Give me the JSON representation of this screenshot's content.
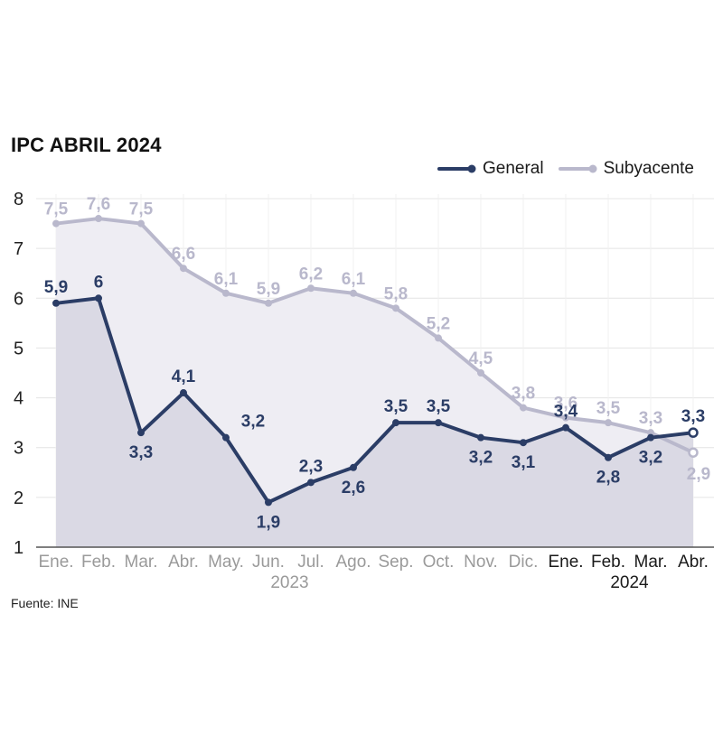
{
  "title": "IPC ABRIL 2024",
  "source": "Fuente: INE",
  "colors": {
    "general": "#2b3d66",
    "subyacente": "#b9b8cc",
    "general_fill": "#d6d5e0",
    "subyacente_fill": "#eeedf3",
    "grid": "#e4e4e4",
    "tick_2023": "#9a9a9a",
    "tick_2024": "#1a1a1a"
  },
  "chart_data": {
    "type": "line",
    "title": "IPC ABRIL 2024",
    "categories": [
      "Ene.",
      "Feb.",
      "Mar.",
      "Abr.",
      "May.",
      "Jun.",
      "Jul.",
      "Ago.",
      "Sep.",
      "Oct.",
      "Nov.",
      "Dic.",
      "Ene.",
      "Feb.",
      "Mar.",
      "Abr."
    ],
    "year_labels": [
      {
        "label": "2023",
        "start": 0,
        "end": 11
      },
      {
        "label": "2024",
        "start": 12,
        "end": 15
      }
    ],
    "series": [
      {
        "name": "General",
        "values": [
          5.9,
          6,
          3.3,
          4.1,
          3.2,
          1.9,
          2.3,
          2.6,
          3.5,
          3.5,
          3.2,
          3.1,
          3.4,
          2.8,
          3.2,
          3.3
        ],
        "labels": [
          "5,9",
          "6",
          "3,3",
          "4,1",
          "3,2",
          "1,9",
          "2,3",
          "2,6",
          "3,5",
          "3,5",
          "3,2",
          "3,1",
          "3,4",
          "2,8",
          "3,2",
          "3,3"
        ]
      },
      {
        "name": "Subyacente",
        "values": [
          7.5,
          7.6,
          7.5,
          6.6,
          6.1,
          5.9,
          6.2,
          6.1,
          5.8,
          5.2,
          4.5,
          3.8,
          3.6,
          3.5,
          3.3,
          2.9
        ],
        "labels": [
          "7,5",
          "7,6",
          "7,5",
          "6,6",
          "6,1",
          "5,9",
          "6,2",
          "6,1",
          "5,8",
          "5,2",
          "4,5",
          "3,8",
          "3,6",
          "3,5",
          "3,3",
          "2,9"
        ]
      }
    ],
    "yticks": [
      1,
      2,
      3,
      4,
      5,
      6,
      7,
      8
    ],
    "ylim": [
      1,
      8
    ],
    "grid": true,
    "legend": "top-right",
    "xlabel": "",
    "ylabel": ""
  }
}
